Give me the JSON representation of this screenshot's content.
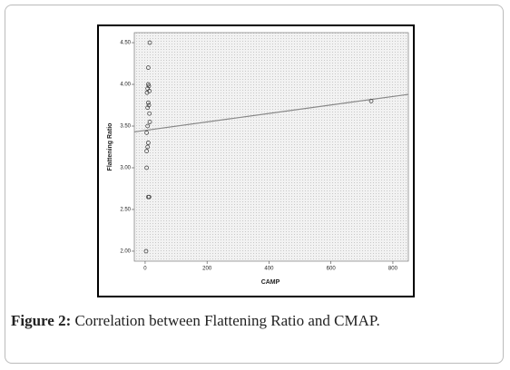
{
  "chart_data": {
    "type": "scatter",
    "x_label": "CAMP",
    "y_label": "Flattening Ratio",
    "x": [
      15,
      10,
      10,
      12,
      8,
      14,
      6,
      10,
      12,
      8,
      14,
      15,
      8,
      5,
      10,
      8,
      5,
      5,
      10,
      13,
      3,
      730
    ],
    "values": [
      4.5,
      4.2,
      4.0,
      3.98,
      3.95,
      3.92,
      3.9,
      3.78,
      3.75,
      3.72,
      3.65,
      3.55,
      3.5,
      3.42,
      3.3,
      3.25,
      3.2,
      3.0,
      2.65,
      2.65,
      2.0,
      3.8
    ],
    "color": "#333333",
    "fit_line": {
      "x": [
        -35,
        850
      ],
      "y": [
        3.43,
        3.88
      ],
      "color": "#888888"
    },
    "xlim": [
      -35,
      850
    ],
    "ylim": [
      1.88,
      4.62
    ],
    "xticks": [
      0,
      200,
      400,
      600,
      800
    ],
    "yticks": [
      {
        "value": 2.0,
        "label": "2.00"
      },
      {
        "value": 2.5,
        "label": "2.50"
      },
      {
        "value": 3.0,
        "label": "3.00"
      },
      {
        "value": 3.5,
        "label": "3.50"
      },
      {
        "value": 4.0,
        "label": "4.00"
      },
      {
        "value": 4.5,
        "label": "4.50"
      }
    ]
  },
  "caption": {
    "label": "Figure 2:",
    "text": "Correlation between Flattening Ratio and CMAP."
  }
}
